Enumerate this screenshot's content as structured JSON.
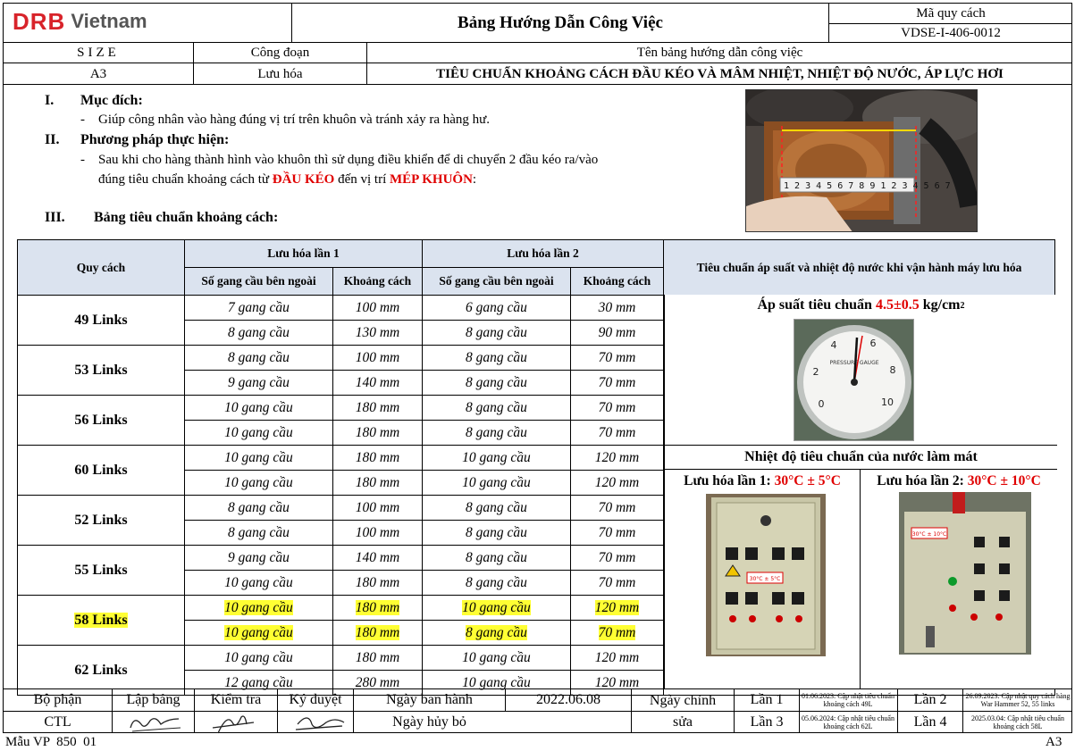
{
  "header": {
    "logo_brand": "DRB",
    "logo_suffix": "Vietnam",
    "title": "Bảng Hướng Dẫn Công Việc",
    "code_label": "Mã quy cách",
    "code_value": "VDSE-I-406-0012",
    "size_label": "SIZE",
    "size_value": "A3",
    "process_label": "Công đoạn",
    "process_value": "Lưu hóa",
    "doc_name_label": "Tên bảng hướng dẫn công việc",
    "doc_name_value": "TIÊU CHUẨN KHOẢNG CÁCH ĐẦU KÉO VÀ MÂM NHIỆT, NHIỆT ĐỘ NƯỚC, ÁP LỰC HƠI"
  },
  "content": {
    "s1_num": "I.",
    "s1_title": "Mục đích:",
    "s1_text": "Giúp công nhân vào hàng đúng vị trí trên khuôn và tránh xảy ra hàng hư.",
    "s2_num": "II.",
    "s2_title": "Phương pháp thực hiện:",
    "s2_text1": "Sau khi cho hàng thành hình vào khuôn thì sử dụng điều khiển để di chuyển 2 đầu kéo ra/vào",
    "s2_text2a": "đúng tiêu chuẩn khoảng cách từ ",
    "s2_red1": "ĐẦU KÉO",
    "s2_text2b": " đến vị trí ",
    "s2_red2": "MÉP KHUÔN",
    "s2_text2c": ":",
    "s3_num": "III.",
    "s3_title": "Bảng tiêu chuẩn khoảng cách:",
    "bullet": "-"
  },
  "table": {
    "col_spec": "Quy cách",
    "col_lan1": "Lưu hóa lần 1",
    "col_lan2": "Lưu hóa lần 2",
    "col_sogang": "Số gang cầu bên ngoài",
    "col_khoangcach": "Khoảng cách",
    "col_standard": "Tiêu chuẩn áp suất và nhiệt độ nước khi vận hành máy lưu hóa",
    "rows": [
      {
        "spec": "49 Links",
        "r": [
          [
            "7 gang cầu",
            "100 mm",
            "6 gang cầu",
            "30 mm"
          ],
          [
            "8 gang cầu",
            "130 mm",
            "8 gang cầu",
            "90 mm"
          ]
        ]
      },
      {
        "spec": "53 Links",
        "r": [
          [
            "8 gang cầu",
            "100 mm",
            "8 gang cầu",
            "70 mm"
          ],
          [
            "9 gang cầu",
            "140 mm",
            "8 gang cầu",
            "70 mm"
          ]
        ]
      },
      {
        "spec": "56 Links",
        "r": [
          [
            "10 gang cầu",
            "180 mm",
            "8 gang cầu",
            "70 mm"
          ],
          [
            "10 gang cầu",
            "180 mm",
            "8 gang cầu",
            "70 mm"
          ]
        ]
      },
      {
        "spec": "60 Links",
        "r": [
          [
            "10 gang cầu",
            "180 mm",
            "10 gang cầu",
            "120 mm"
          ],
          [
            "10 gang cầu",
            "180 mm",
            "10 gang cầu",
            "120 mm"
          ]
        ]
      },
      {
        "spec": "52 Links",
        "r": [
          [
            "8 gang cầu",
            "100 mm",
            "8 gang cầu",
            "70 mm"
          ],
          [
            "8 gang cầu",
            "100 mm",
            "8 gang cầu",
            "70 mm"
          ]
        ]
      },
      {
        "spec": "55 Links",
        "r": [
          [
            "9 gang cầu",
            "140 mm",
            "8 gang cầu",
            "70 mm"
          ],
          [
            "10 gang cầu",
            "180 mm",
            "8 gang cầu",
            "70 mm"
          ]
        ]
      },
      {
        "spec": "58 Links",
        "highlight": true,
        "r": [
          [
            "10 gang cầu",
            "180 mm",
            "10 gang cầu",
            "120 mm"
          ],
          [
            "10 gang cầu",
            "180 mm",
            "8 gang cầu",
            "70 mm"
          ]
        ]
      },
      {
        "spec": "62 Links",
        "r": [
          [
            "10 gang cầu",
            "180 mm",
            "10 gang cầu",
            "120 mm"
          ],
          [
            "12 gang cầu",
            "280 mm",
            "10 gang cầu",
            "120 mm"
          ]
        ]
      }
    ],
    "pressure_label": "Áp suất tiêu chuẩn ",
    "pressure_value": "4.5±0.5",
    "pressure_unit": " kg/cm",
    "pressure_sup": "2",
    "temp_title": "Nhiệt độ tiêu chuẩn của nước làm mát",
    "temp1_label": "Lưu hóa lần 1: ",
    "temp1_value": "30°C ± 5°C",
    "temp2_label": "Lưu hóa lần 2: ",
    "temp2_value": "30°C ± 10°C",
    "gauge_brand": "PRESSURE GAUGE",
    "gauge_ticks": [
      "0",
      "2",
      "4",
      "6",
      "8",
      "10"
    ],
    "panel1_sticker": "30°C ± 5°C",
    "panel2_sticker": "30°C ± 10°C"
  },
  "footer": {
    "dept_label": "Bộ phận",
    "dept_value": "CTL",
    "made_label": "Lập bảng",
    "check_label": "Kiểm tra",
    "approve_label": "Ký duyệt",
    "issue_label": "Ngày ban hành",
    "issue_value": "2022.06.08",
    "cancel_label": "Ngày hủy bỏ",
    "edit_label_1": "Ngày chỉnh",
    "edit_label_2": "sửa",
    "lan1": "Lần 1",
    "lan1_note": "01.06.2023: Cập nhật tiêu chuẩn khoảng cách 49L",
    "lan2": "Lần 2",
    "lan2_note": "26.09.2023: Cập nhật quy cách hàng War Hammer 52, 55 links",
    "lan3": "Lần 3",
    "lan3_note": "05.06.2024: Cập nhật tiêu chuẩn khoảng cách 62L",
    "lan4": "Lần 4",
    "lan4_note": "2025.03.04: Cập nhật tiêu chuẩn khoảng cách 58L",
    "form_code": "Mẫu VP  850  01",
    "paper_size": "A3"
  },
  "colors": {
    "accent_red": "#e00000",
    "header_blue": "#dbe3ef",
    "highlight": "#ffff33",
    "logo_red": "#d8232a"
  }
}
